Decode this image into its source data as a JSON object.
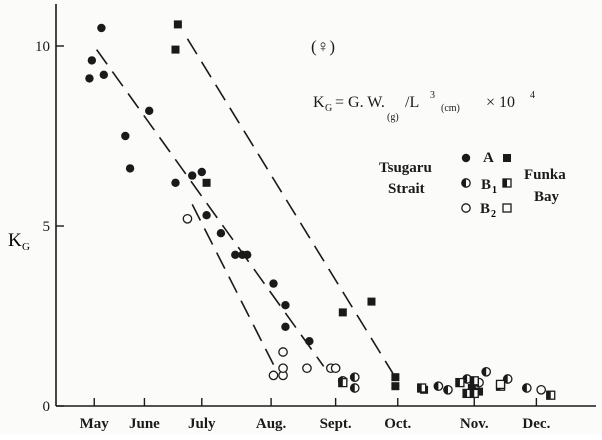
{
  "chart_data": {
    "type": "scatter",
    "panel_label": "(♀)",
    "ylabel": "K_G",
    "ylabel_main": "K",
    "ylabel_sub": "G",
    "ylim": [
      0,
      11
    ],
    "yticks": [
      {
        "value": 0,
        "label": "0"
      },
      {
        "value": 5,
        "label": "5"
      },
      {
        "value": 10,
        "label": "10"
      }
    ],
    "xlim": [
      0,
      11.3
    ],
    "xticks": [
      {
        "value": 0.8,
        "label": "May"
      },
      {
        "value": 1.85,
        "label": "June"
      },
      {
        "value": 3.05,
        "label": "July"
      },
      {
        "value": 4.5,
        "label": "Aug."
      },
      {
        "value": 5.85,
        "label": "Sept."
      },
      {
        "value": 7.15,
        "label": "Oct."
      },
      {
        "value": 8.75,
        "label": "Nov."
      },
      {
        "value": 10.05,
        "label": "Dec."
      }
    ],
    "formula": {
      "lhs_main": "K",
      "lhs_sub": "G",
      "eq": "= G. W.",
      "w_sub": "(g)",
      "slash": "/L",
      "pow3": "3",
      "cm_sub": "(cm)",
      "times": "× 10",
      "pow4": "4"
    },
    "legend": {
      "left_group": "Tsugaru Strait",
      "left_group_lines": [
        "Tsugaru",
        "Strait"
      ],
      "right_group": "Funka Bay",
      "right_group_lines": [
        "Funka",
        "Bay"
      ],
      "rows": [
        {
          "label": "A",
          "label_main": "A",
          "label_sub": "",
          "marker_left": "filled-circle",
          "marker_right": "filled-square"
        },
        {
          "label": "B1",
          "label_main": "B",
          "label_sub": "1",
          "marker_left": "half-circle",
          "marker_right": "half-square"
        },
        {
          "label": "B2",
          "label_main": "B",
          "label_sub": "2",
          "marker_left": "open-circle",
          "marker_right": "open-square"
        }
      ]
    },
    "series": [
      {
        "name": "Tsugaru Strait A",
        "marker": "filled-circle",
        "points": [
          [
            0.7,
            9.1
          ],
          [
            0.75,
            9.6
          ],
          [
            0.95,
            10.5
          ],
          [
            1.0,
            9.2
          ],
          [
            1.45,
            7.5
          ],
          [
            1.55,
            6.6
          ],
          [
            1.95,
            8.2
          ],
          [
            2.5,
            6.2
          ],
          [
            2.85,
            6.4
          ],
          [
            3.05,
            6.5
          ],
          [
            3.15,
            5.3
          ],
          [
            3.45,
            4.8
          ],
          [
            3.75,
            4.2
          ],
          [
            3.9,
            4.2
          ],
          [
            4.0,
            4.2
          ],
          [
            4.55,
            3.4
          ],
          [
            4.8,
            2.8
          ],
          [
            4.8,
            2.2
          ],
          [
            5.3,
            1.8
          ]
        ]
      },
      {
        "name": "Funka Bay A",
        "marker": "filled-square",
        "points": [
          [
            2.5,
            9.9
          ],
          [
            2.55,
            10.6
          ],
          [
            3.15,
            6.2
          ],
          [
            6.0,
            2.6
          ],
          [
            6.6,
            2.9
          ],
          [
            7.1,
            0.8
          ],
          [
            7.1,
            0.55
          ],
          [
            7.7,
            0.45
          ],
          [
            8.7,
            0.5
          ],
          [
            8.85,
            0.4
          ]
        ]
      },
      {
        "name": "Tsugaru Strait B1",
        "marker": "half-circle",
        "points": [
          [
            6.0,
            0.7
          ],
          [
            6.25,
            0.8
          ],
          [
            6.25,
            0.5
          ],
          [
            8.0,
            0.55
          ],
          [
            8.2,
            0.45
          ],
          [
            8.6,
            0.75
          ],
          [
            8.85,
            0.65
          ],
          [
            9.0,
            0.95
          ],
          [
            9.45,
            0.75
          ],
          [
            9.85,
            0.5
          ]
        ]
      },
      {
        "name": "Funka Bay B1",
        "marker": "half-square",
        "points": [
          [
            6.0,
            0.65
          ],
          [
            7.65,
            0.5
          ],
          [
            8.45,
            0.65
          ],
          [
            8.75,
            0.7
          ],
          [
            8.6,
            0.35
          ],
          [
            8.75,
            0.35
          ],
          [
            9.3,
            0.55
          ],
          [
            10.35,
            0.3
          ]
        ]
      },
      {
        "name": "Tsugaru Strait B2",
        "marker": "open-circle",
        "points": [
          [
            2.75,
            5.2
          ],
          [
            4.55,
            0.85
          ],
          [
            4.75,
            0.85
          ],
          [
            4.75,
            1.05
          ],
          [
            4.75,
            1.5
          ],
          [
            5.25,
            1.05
          ],
          [
            5.75,
            1.05
          ],
          [
            5.85,
            1.05
          ],
          [
            10.15,
            0.45
          ]
        ]
      },
      {
        "name": "Funka Bay B2",
        "marker": "open-square",
        "points": [
          [
            9.3,
            0.6
          ]
        ]
      }
    ],
    "trend_lines": [
      {
        "name": "trend-tsugaru-a",
        "from": [
          0.85,
          9.9
        ],
        "to": [
          5.6,
          1.1
        ]
      },
      {
        "name": "trend-funka-a",
        "from": [
          2.75,
          10.2
        ],
        "to": [
          7.05,
          0.9
        ]
      },
      {
        "name": "trend-tsugaru-b",
        "from": [
          2.85,
          5.6
        ],
        "to": [
          4.55,
          1.15
        ]
      }
    ],
    "grid": false,
    "legend_position": "right"
  },
  "colors": {
    "ink": "#1a1a1a",
    "background": "#fbfbf9"
  }
}
